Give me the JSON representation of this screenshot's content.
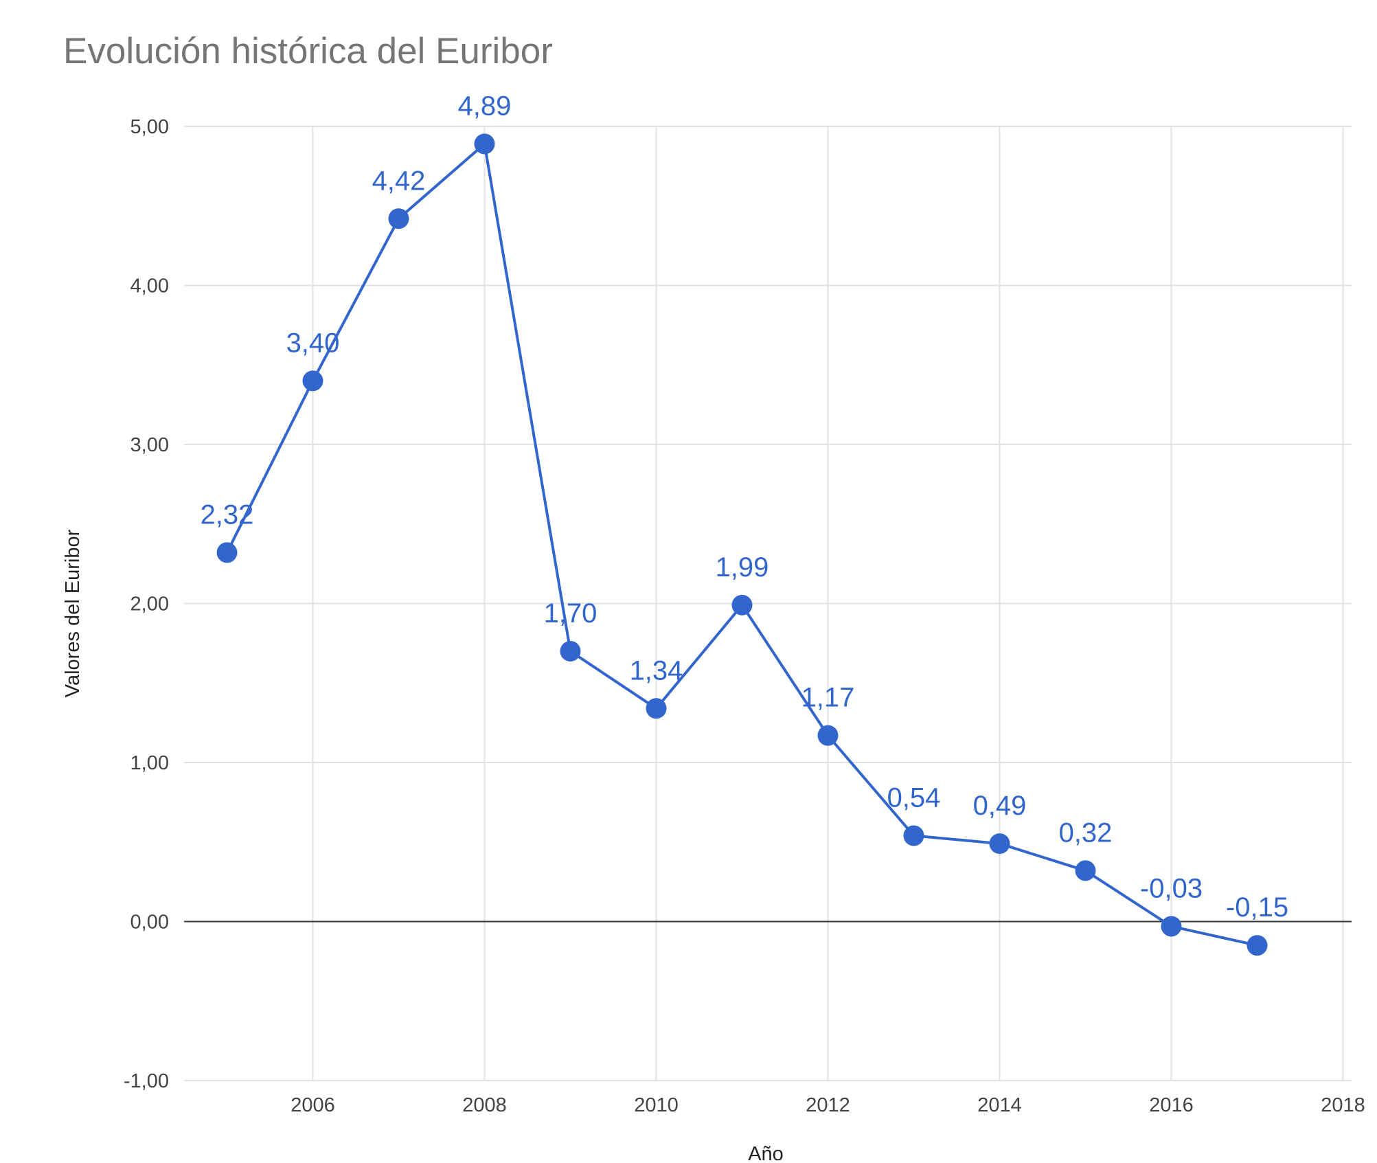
{
  "chart_data": {
    "type": "line",
    "title": "Evolución histórica del Euribor",
    "xlabel": "Año",
    "ylabel": "Valores del Euribor",
    "x": [
      2005,
      2006,
      2007,
      2008,
      2009,
      2010,
      2011,
      2012,
      2013,
      2014,
      2015,
      2016,
      2017
    ],
    "series": [
      {
        "values": [
          2.32,
          3.4,
          4.42,
          4.89,
          1.7,
          1.34,
          1.99,
          1.17,
          0.54,
          0.49,
          0.32,
          -0.03,
          -0.15
        ],
        "data_labels": [
          "2,32",
          "3,40",
          "4,42",
          "4,89",
          "1,70",
          "1,34",
          "1,99",
          "1,17",
          "0,54",
          "0,49",
          "0,32",
          "-0,03",
          "-0,15"
        ]
      }
    ],
    "xlim": [
      2004.5,
      2018.1
    ],
    "ylim": [
      -1,
      5
    ],
    "x_ticks": [
      2006,
      2008,
      2010,
      2012,
      2014,
      2016,
      2018
    ],
    "x_tick_labels": [
      "2006",
      "2008",
      "2010",
      "2012",
      "2014",
      "2016",
      "2018"
    ],
    "y_ticks": [
      -1,
      0,
      1,
      2,
      3,
      4,
      5
    ],
    "y_tick_labels": [
      "-1,00",
      "0,00",
      "1,00",
      "2,00",
      "3,00",
      "4,00",
      "5,00"
    ],
    "grid": true,
    "legend": "none",
    "series_color": "#3366cc",
    "zero_line_color": "#333333"
  }
}
